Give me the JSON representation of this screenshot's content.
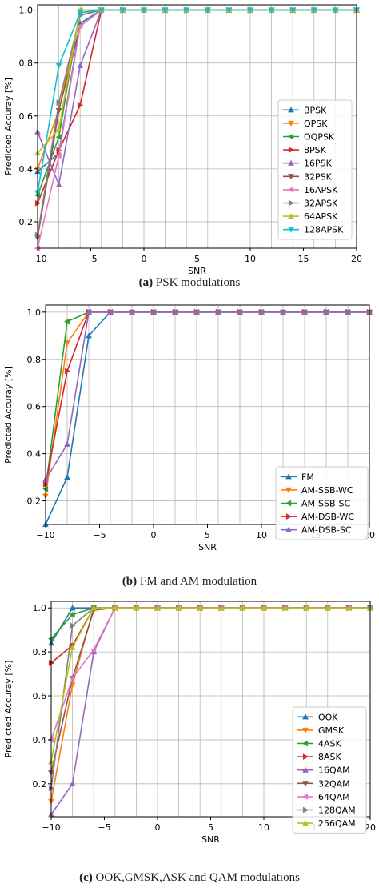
{
  "chart_data": [
    {
      "type": "line",
      "xlabel": "SNR",
      "ylabel": "Predicted Accuray [%]",
      "xlim": [
        -10,
        20
      ],
      "ylim": [
        0.1,
        1.02
      ],
      "xticks": [
        -10,
        -5,
        0,
        5,
        10,
        15,
        20
      ],
      "yticks": [
        0.2,
        0.4,
        0.6,
        0.8,
        1.0
      ],
      "ytick_labels": [
        "0.2",
        "0.4",
        "0.6",
        "0.8",
        "1.0"
      ],
      "grid": true,
      "legend": "center-right",
      "caption_label": "(a)",
      "caption_text": "PSK modulations",
      "x": [
        -10,
        -8,
        -6,
        -4,
        -2,
        0,
        2,
        4,
        6,
        8,
        10,
        12,
        14,
        16,
        18,
        20
      ],
      "series": [
        {
          "name": "BPSK",
          "color": "#1f77b4",
          "marker": "tri_up",
          "values": [
            0.39,
            0.46,
            0.95,
            1.0,
            1.0,
            1.0,
            1.0,
            1.0,
            1.0,
            1.0,
            1.0,
            1.0,
            1.0,
            1.0,
            1.0,
            1.0
          ]
        },
        {
          "name": "QPSK",
          "color": "#ff7f0e",
          "marker": "tri_down",
          "values": [
            0.4,
            0.62,
            0.99,
            1.0,
            1.0,
            1.0,
            1.0,
            1.0,
            1.0,
            1.0,
            1.0,
            1.0,
            1.0,
            1.0,
            1.0,
            1.0
          ]
        },
        {
          "name": "OQPSK",
          "color": "#2ca02c",
          "marker": "tri_left",
          "values": [
            0.3,
            0.52,
            1.0,
            1.0,
            1.0,
            1.0,
            1.0,
            1.0,
            1.0,
            1.0,
            1.0,
            1.0,
            1.0,
            1.0,
            1.0,
            1.0
          ]
        },
        {
          "name": "8PSK",
          "color": "#d62728",
          "marker": "tri_right",
          "values": [
            0.27,
            0.47,
            0.64,
            1.0,
            1.0,
            1.0,
            1.0,
            1.0,
            1.0,
            1.0,
            1.0,
            1.0,
            1.0,
            1.0,
            1.0,
            1.0
          ]
        },
        {
          "name": "16PSK",
          "color": "#9467bd",
          "marker": "tri_up",
          "values": [
            0.54,
            0.34,
            0.79,
            1.0,
            1.0,
            1.0,
            1.0,
            1.0,
            1.0,
            1.0,
            1.0,
            1.0,
            1.0,
            1.0,
            1.0,
            1.0
          ]
        },
        {
          "name": "32PSK",
          "color": "#8c564b",
          "marker": "tri_down",
          "values": [
            0.14,
            0.62,
            0.94,
            1.0,
            1.0,
            1.0,
            1.0,
            1.0,
            1.0,
            1.0,
            1.0,
            1.0,
            1.0,
            1.0,
            1.0,
            1.0
          ]
        },
        {
          "name": "16APSK",
          "color": "#e377c2",
          "marker": "tri_left",
          "values": [
            0.1,
            0.45,
            0.94,
            1.0,
            1.0,
            1.0,
            1.0,
            1.0,
            1.0,
            1.0,
            1.0,
            1.0,
            1.0,
            1.0,
            1.0,
            1.0
          ]
        },
        {
          "name": "32APSK",
          "color": "#7f7f7f",
          "marker": "tri_right",
          "values": [
            0.15,
            0.65,
            0.98,
            1.0,
            1.0,
            1.0,
            1.0,
            1.0,
            1.0,
            1.0,
            1.0,
            1.0,
            1.0,
            1.0,
            1.0,
            1.0
          ]
        },
        {
          "name": "64APSK",
          "color": "#bcbd22",
          "marker": "tri_up",
          "values": [
            0.46,
            0.55,
            1.0,
            1.0,
            1.0,
            1.0,
            1.0,
            1.0,
            1.0,
            1.0,
            1.0,
            1.0,
            1.0,
            1.0,
            1.0,
            1.0
          ]
        },
        {
          "name": "128APSK",
          "color": "#17becf",
          "marker": "tri_down",
          "values": [
            0.31,
            0.79,
            0.99,
            1.0,
            1.0,
            1.0,
            1.0,
            1.0,
            1.0,
            1.0,
            1.0,
            1.0,
            1.0,
            1.0,
            1.0,
            1.0
          ]
        }
      ]
    },
    {
      "type": "line",
      "xlabel": "SNR",
      "ylabel": "Predicted Accuray [%]",
      "xlim": [
        -10,
        20
      ],
      "ylim": [
        0.1,
        1.03
      ],
      "xticks": [
        -10,
        -5,
        0,
        5,
        10,
        15,
        20
      ],
      "yticks": [
        0.2,
        0.4,
        0.6,
        0.8,
        1.0
      ],
      "ytick_labels": [
        "0.2",
        "0.4",
        "0.6",
        "0.8",
        "1.0"
      ],
      "grid": true,
      "legend": "lower-right",
      "caption_label": "(b)",
      "caption_text": "FM and AM modulation",
      "x": [
        -10,
        -8,
        -6,
        -4,
        -2,
        0,
        2,
        4,
        6,
        8,
        10,
        12,
        14,
        16,
        18,
        20
      ],
      "series": [
        {
          "name": "FM",
          "color": "#1f77b4",
          "marker": "tri_up",
          "values": [
            0.1,
            0.3,
            0.9,
            1.0,
            1.0,
            1.0,
            1.0,
            1.0,
            1.0,
            1.0,
            1.0,
            1.0,
            1.0,
            1.0,
            1.0,
            1.0
          ]
        },
        {
          "name": "AM-SSB-WC",
          "color": "#ff7f0e",
          "marker": "tri_down",
          "values": [
            0.22,
            0.87,
            1.0,
            1.0,
            1.0,
            1.0,
            1.0,
            1.0,
            1.0,
            1.0,
            1.0,
            1.0,
            1.0,
            1.0,
            1.0,
            1.0
          ]
        },
        {
          "name": "AM-SSB-SC",
          "color": "#2ca02c",
          "marker": "tri_left",
          "values": [
            0.25,
            0.96,
            1.0,
            1.0,
            1.0,
            1.0,
            1.0,
            1.0,
            1.0,
            1.0,
            1.0,
            1.0,
            1.0,
            1.0,
            1.0,
            1.0
          ]
        },
        {
          "name": "AM-DSB-WC",
          "color": "#d62728",
          "marker": "tri_right",
          "values": [
            0.27,
            0.75,
            1.0,
            1.0,
            1.0,
            1.0,
            1.0,
            1.0,
            1.0,
            1.0,
            1.0,
            1.0,
            1.0,
            1.0,
            1.0,
            1.0
          ]
        },
        {
          "name": "AM-DSB-SC",
          "color": "#9467bd",
          "marker": "tri_up",
          "values": [
            0.29,
            0.44,
            1.0,
            1.0,
            1.0,
            1.0,
            1.0,
            1.0,
            1.0,
            1.0,
            1.0,
            1.0,
            1.0,
            1.0,
            1.0,
            1.0
          ]
        }
      ]
    },
    {
      "type": "line",
      "xlabel": "SNR",
      "ylabel": "Predicted Accuray [%]",
      "xlim": [
        -10,
        20
      ],
      "ylim": [
        0.05,
        1.03
      ],
      "xticks": [
        -10,
        -5,
        0,
        5,
        10,
        15,
        20
      ],
      "yticks": [
        0.2,
        0.4,
        0.6,
        0.8,
        1.0
      ],
      "ytick_labels": [
        "0.2",
        "0.4",
        "0.6",
        "0.8",
        "1.0"
      ],
      "grid": true,
      "legend": "lower-right",
      "caption_label": "(c)",
      "caption_text": "OOK,GMSK,ASK and QAM modulations",
      "x": [
        -10,
        -8,
        -6,
        -4,
        -2,
        0,
        2,
        4,
        6,
        8,
        10,
        12,
        14,
        16,
        18,
        20
      ],
      "series": [
        {
          "name": "OOK",
          "color": "#1f77b4",
          "marker": "tri_up",
          "values": [
            0.84,
            1.0,
            1.0,
            1.0,
            1.0,
            1.0,
            1.0,
            1.0,
            1.0,
            1.0,
            1.0,
            1.0,
            1.0,
            1.0,
            1.0,
            1.0
          ]
        },
        {
          "name": "GMSK",
          "color": "#ff7f0e",
          "marker": "tri_down",
          "values": [
            0.12,
            0.65,
            1.0,
            1.0,
            1.0,
            1.0,
            1.0,
            1.0,
            1.0,
            1.0,
            1.0,
            1.0,
            1.0,
            1.0,
            1.0,
            1.0
          ]
        },
        {
          "name": "4ASK",
          "color": "#2ca02c",
          "marker": "tri_left",
          "values": [
            0.86,
            0.97,
            1.0,
            1.0,
            1.0,
            1.0,
            1.0,
            1.0,
            1.0,
            1.0,
            1.0,
            1.0,
            1.0,
            1.0,
            1.0,
            1.0
          ]
        },
        {
          "name": "8ASK",
          "color": "#d62728",
          "marker": "tri_right",
          "values": [
            0.75,
            0.83,
            1.0,
            1.0,
            1.0,
            1.0,
            1.0,
            1.0,
            1.0,
            1.0,
            1.0,
            1.0,
            1.0,
            1.0,
            1.0,
            1.0
          ]
        },
        {
          "name": "16QAM",
          "color": "#9467bd",
          "marker": "tri_up",
          "values": [
            0.06,
            0.2,
            0.8,
            1.0,
            1.0,
            1.0,
            1.0,
            1.0,
            1.0,
            1.0,
            1.0,
            1.0,
            1.0,
            1.0,
            1.0,
            1.0
          ]
        },
        {
          "name": "32QAM",
          "color": "#8c564b",
          "marker": "tri_down",
          "values": [
            0.25,
            0.68,
            0.99,
            1.0,
            1.0,
            1.0,
            1.0,
            1.0,
            1.0,
            1.0,
            1.0,
            1.0,
            1.0,
            1.0,
            1.0,
            1.0
          ]
        },
        {
          "name": "64QAM",
          "color": "#e377c2",
          "marker": "tri_left",
          "values": [
            0.4,
            0.68,
            0.81,
            1.0,
            1.0,
            1.0,
            1.0,
            1.0,
            1.0,
            1.0,
            1.0,
            1.0,
            1.0,
            1.0,
            1.0,
            1.0
          ]
        },
        {
          "name": "128QAM",
          "color": "#7f7f7f",
          "marker": "tri_right",
          "values": [
            0.18,
            0.92,
            1.0,
            1.0,
            1.0,
            1.0,
            1.0,
            1.0,
            1.0,
            1.0,
            1.0,
            1.0,
            1.0,
            1.0,
            1.0,
            1.0
          ]
        },
        {
          "name": "256QAM",
          "color": "#bcbd22",
          "marker": "tri_up",
          "values": [
            0.3,
            0.82,
            1.0,
            1.0,
            1.0,
            1.0,
            1.0,
            1.0,
            1.0,
            1.0,
            1.0,
            1.0,
            1.0,
            1.0,
            1.0,
            1.0
          ]
        }
      ]
    }
  ]
}
